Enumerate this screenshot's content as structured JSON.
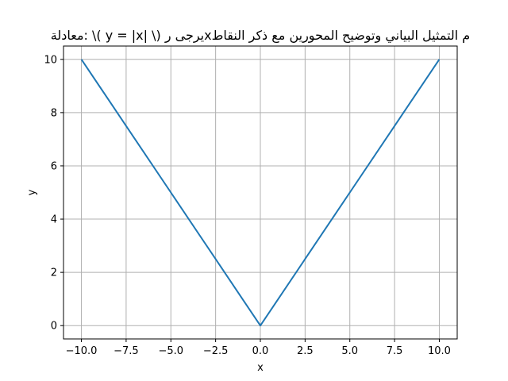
{
  "chart_data": {
    "type": "line",
    "title": "معادلة: \\( y = |x| \\) يرجى رxم التمثيل البياني وتوضيح المحورين مع ذكر النقاط",
    "xlabel": "x",
    "ylabel": "y",
    "x": [
      -10,
      -7.5,
      -5,
      -2.5,
      0,
      2.5,
      5,
      7.5,
      10
    ],
    "series": [
      {
        "values": [
          10,
          7.5,
          5,
          2.5,
          0,
          2.5,
          5,
          7.5,
          10
        ]
      }
    ],
    "xlim": [
      -11,
      11
    ],
    "ylim": [
      -0.5,
      10.5
    ],
    "xticks": [
      -10,
      -7.5,
      -5,
      -2.5,
      0,
      2.5,
      5,
      7.5,
      10
    ],
    "xtick_labels": [
      "−10.0",
      "−7.5",
      "−5.0",
      "−2.5",
      "0.0",
      "2.5",
      "5.0",
      "7.5",
      "10.0"
    ],
    "yticks": [
      0,
      2,
      4,
      6,
      8,
      10
    ],
    "ytick_labels": [
      "0",
      "2",
      "4",
      "6",
      "8",
      "10"
    ],
    "grid": true,
    "colors": {
      "line": "#1f77b4",
      "grid": "#b0b0b0",
      "axes": "#000000"
    }
  }
}
